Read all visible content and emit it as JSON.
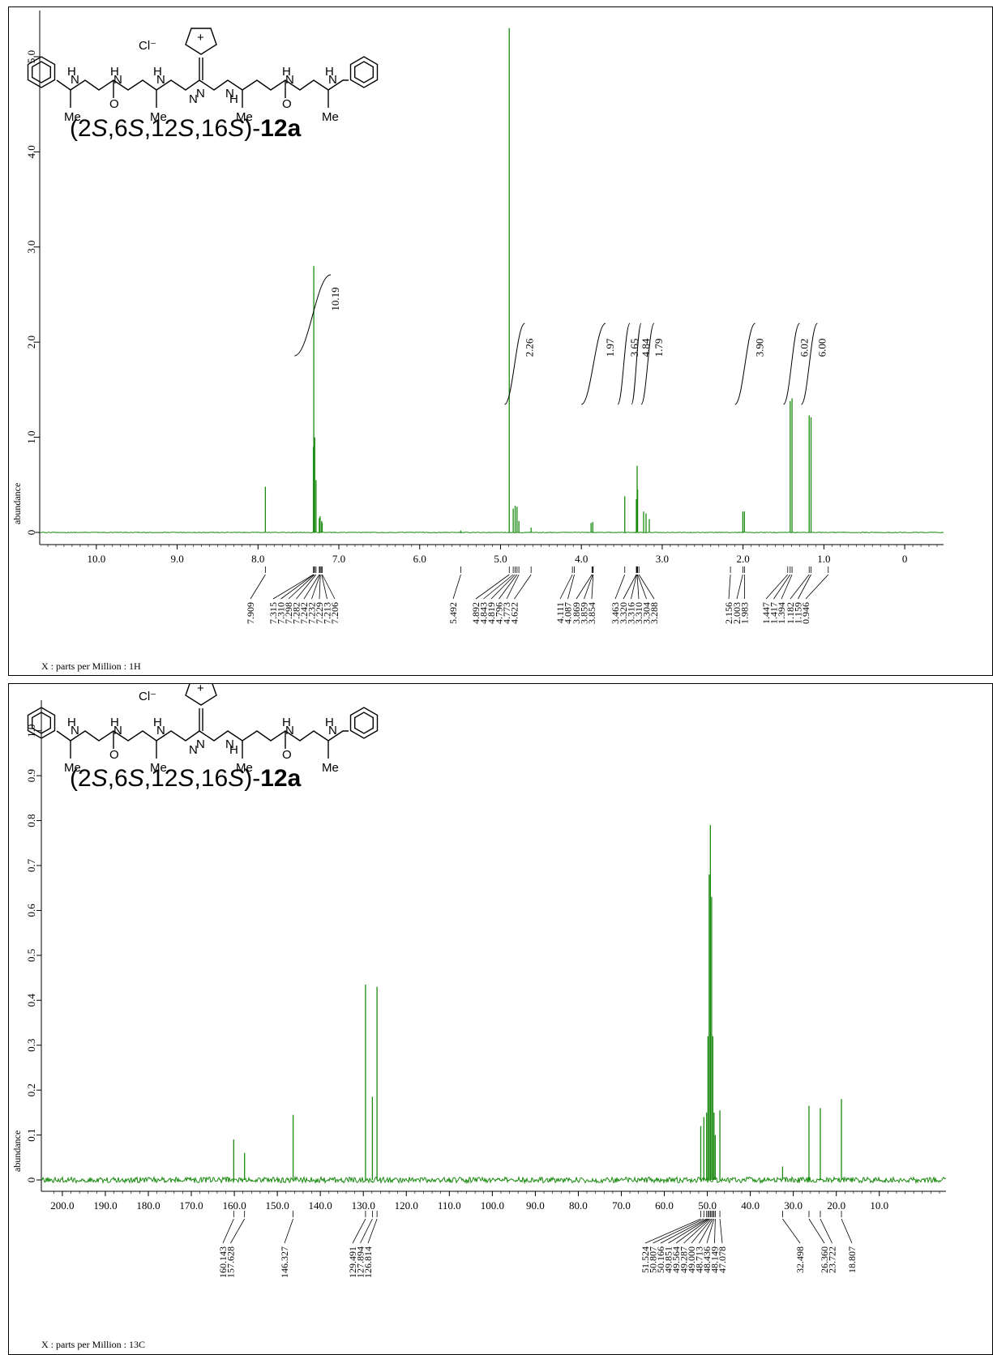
{
  "chart_data": [
    {
      "type": "line",
      "nucleus": "1H",
      "ylabel": "abundance",
      "xlabel": "X : parts per Million : 1H",
      "compound_label": {
        "prefix": "(2",
        "s1": "S",
        "mid1": ",6",
        "s2": "S",
        "mid2": ",12",
        "s3": "S",
        "mid3": ",16",
        "s4": "S",
        "close": ")-",
        "bold": "12a"
      },
      "counterion": "Cl⁻",
      "structure_labels": [
        "H",
        "N",
        "H",
        "N",
        "N",
        "N",
        "H",
        "N",
        "H",
        "N",
        "H",
        "N",
        "H",
        "N",
        "O",
        "O",
        "Me",
        "Me",
        "Me",
        "Me",
        "+"
      ],
      "xlim": [
        10.6,
        -0.4
      ],
      "ylim": [
        -0.08,
        5.4
      ],
      "x_ticks": [
        "10.0",
        "9.0",
        "8.0",
        "7.0",
        "6.0",
        "5.0",
        "4.0",
        "3.0",
        "2.0",
        "1.0",
        "0"
      ],
      "y_ticks": [
        "0",
        "1.0",
        "2.0",
        "3.0",
        "4.0",
        "5.0"
      ],
      "peaks": [
        {
          "x": 7.909,
          "y": 0.48
        },
        {
          "x": 7.315,
          "y": 0.9
        },
        {
          "x": 7.31,
          "y": 2.8
        },
        {
          "x": 7.298,
          "y": 1.0
        },
        {
          "x": 7.282,
          "y": 0.55
        },
        {
          "x": 7.242,
          "y": 0.15
        },
        {
          "x": 7.232,
          "y": 0.17
        },
        {
          "x": 7.213,
          "y": 0.12
        },
        {
          "x": 7.206,
          "y": 0.1
        },
        {
          "x": 5.492,
          "y": 0.02
        },
        {
          "x": 4.892,
          "y": 5.3
        },
        {
          "x": 4.843,
          "y": 0.25
        },
        {
          "x": 4.819,
          "y": 0.28
        },
        {
          "x": 4.796,
          "y": 0.27
        },
        {
          "x": 4.773,
          "y": 0.12
        },
        {
          "x": 4.622,
          "y": 0.05
        },
        {
          "x": 3.88,
          "y": 0.1
        },
        {
          "x": 3.859,
          "y": 0.11
        },
        {
          "x": 3.463,
          "y": 0.38
        },
        {
          "x": 3.32,
          "y": 0.35
        },
        {
          "x": 3.31,
          "y": 0.7
        },
        {
          "x": 3.304,
          "y": 0.45
        },
        {
          "x": 3.23,
          "y": 0.22
        },
        {
          "x": 3.2,
          "y": 0.2
        },
        {
          "x": 3.16,
          "y": 0.14
        },
        {
          "x": 2.003,
          "y": 0.22
        },
        {
          "x": 1.983,
          "y": 0.22
        },
        {
          "x": 1.417,
          "y": 1.38
        },
        {
          "x": 1.394,
          "y": 1.41
        },
        {
          "x": 1.182,
          "y": 1.23
        },
        {
          "x": 1.159,
          "y": 1.21
        }
      ],
      "peak_labels": [
        "7.909",
        "7.315",
        "7.310",
        "7.298",
        "7.282",
        "7.242",
        "7.232",
        "7.229",
        "7.213",
        "7.206",
        "5.492",
        "4.892",
        "4.843",
        "4.819",
        "4.796",
        "4.773",
        "4.622",
        "4.111",
        "4.087",
        "3.869",
        "3.859",
        "3.854",
        "3.463",
        "3.320",
        "3.316",
        "3.310",
        "3.304",
        "3.288",
        "2.156",
        "2.003",
        "1.983",
        "1.447",
        "1.417",
        "1.394",
        "1.182",
        "1.159",
        "0.946"
      ],
      "integrals": [
        {
          "from": 7.55,
          "to": 7.1,
          "value": "10.19"
        },
        {
          "from": 4.95,
          "to": 4.7,
          "value": "2.26"
        },
        {
          "from": 4.0,
          "to": 3.7,
          "value": "1.97"
        },
        {
          "from": 3.55,
          "to": 3.4,
          "value": "3.65"
        },
        {
          "from": 3.38,
          "to": 3.26,
          "value": "4.84"
        },
        {
          "from": 3.26,
          "to": 3.1,
          "value": "1.79"
        },
        {
          "from": 2.1,
          "to": 1.85,
          "value": "3.90"
        },
        {
          "from": 1.5,
          "to": 1.3,
          "value": "6.02"
        },
        {
          "from": 1.28,
          "to": 1.08,
          "value": "6.00"
        }
      ]
    },
    {
      "type": "line",
      "nucleus": "13C",
      "ylabel": "abundance",
      "xlabel": "X : parts per Million : 13C",
      "compound_label": {
        "prefix": "(2",
        "s1": "S",
        "mid1": ",6",
        "s2": "S",
        "mid2": ",12",
        "s3": "S",
        "mid3": ",16",
        "s4": "S",
        "close": ")-",
        "bold": "12a"
      },
      "counterion": "Cl⁻",
      "structure_labels": [
        "H",
        "N",
        "H",
        "N",
        "N",
        "N",
        "H",
        "N",
        "H",
        "N",
        "H",
        "N",
        "H",
        "N",
        "O",
        "O",
        "Me",
        "Me",
        "Me",
        "Me",
        "+"
      ],
      "xlim": [
        203,
        -4
      ],
      "ylim": [
        -0.02,
        1.05
      ],
      "x_ticks": [
        "200.0",
        "190.0",
        "180.0",
        "170.0",
        "160.0",
        "150.0",
        "140.0",
        "130.0",
        "120.0",
        "110.0",
        "100.0",
        "90.0",
        "80.0",
        "70.0",
        "60.0",
        "50.0",
        "40.0",
        "30.0",
        "20.0",
        "10.0"
      ],
      "y_ticks": [
        "0",
        "0.1",
        "0.2",
        "0.3",
        "0.4",
        "0.5",
        "0.6",
        "0.7",
        "0.8",
        "0.9",
        "1.0"
      ],
      "peaks": [
        {
          "x": 160.143,
          "y": 0.09
        },
        {
          "x": 157.628,
          "y": 0.06
        },
        {
          "x": 146.327,
          "y": 0.145
        },
        {
          "x": 129.491,
          "y": 0.435
        },
        {
          "x": 127.894,
          "y": 0.185
        },
        {
          "x": 126.814,
          "y": 0.43
        },
        {
          "x": 51.524,
          "y": 0.12
        },
        {
          "x": 50.807,
          "y": 0.14
        },
        {
          "x": 50.166,
          "y": 0.15
        },
        {
          "x": 49.851,
          "y": 0.32
        },
        {
          "x": 49.564,
          "y": 0.68
        },
        {
          "x": 49.287,
          "y": 0.79
        },
        {
          "x": 49.0,
          "y": 0.63
        },
        {
          "x": 48.713,
          "y": 0.32
        },
        {
          "x": 48.436,
          "y": 0.15
        },
        {
          "x": 48.149,
          "y": 0.1
        },
        {
          "x": 47.078,
          "y": 0.155
        },
        {
          "x": 32.498,
          "y": 0.03
        },
        {
          "x": 26.36,
          "y": 0.165
        },
        {
          "x": 23.722,
          "y": 0.16
        },
        {
          "x": 18.807,
          "y": 0.18
        }
      ],
      "peak_labels": [
        "160.143",
        "157.628",
        "146.327",
        "129.491",
        "127.894",
        "126.814",
        "51.524",
        "50.807",
        "50.166",
        "49.851",
        "49.564",
        "49.287",
        "49.000",
        "48.713",
        "48.436",
        "48.149",
        "47.078",
        "32.498",
        "26.360",
        "23.722",
        "18.807"
      ]
    }
  ]
}
